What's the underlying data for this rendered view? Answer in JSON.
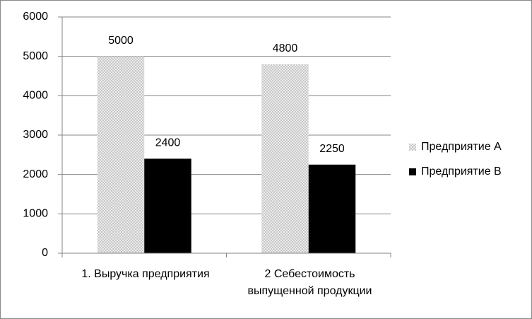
{
  "chart_data": {
    "type": "bar",
    "categories": [
      "1. Выручка предприятия",
      "2    Себестоимость\nвыпущенной продукции"
    ],
    "series": [
      {
        "name": "Предприятие А",
        "color": "#c8c8c8",
        "pattern": "crosshatch",
        "values": [
          5000,
          4800
        ]
      },
      {
        "name": "Предприятие В",
        "color": "#000000",
        "values": [
          2400,
          2250
        ]
      }
    ],
    "ylim": [
      0,
      6000
    ],
    "yticks": [
      0,
      1000,
      2000,
      3000,
      4000,
      5000,
      6000
    ],
    "grid": true,
    "legend": "right",
    "data_labels": true
  }
}
